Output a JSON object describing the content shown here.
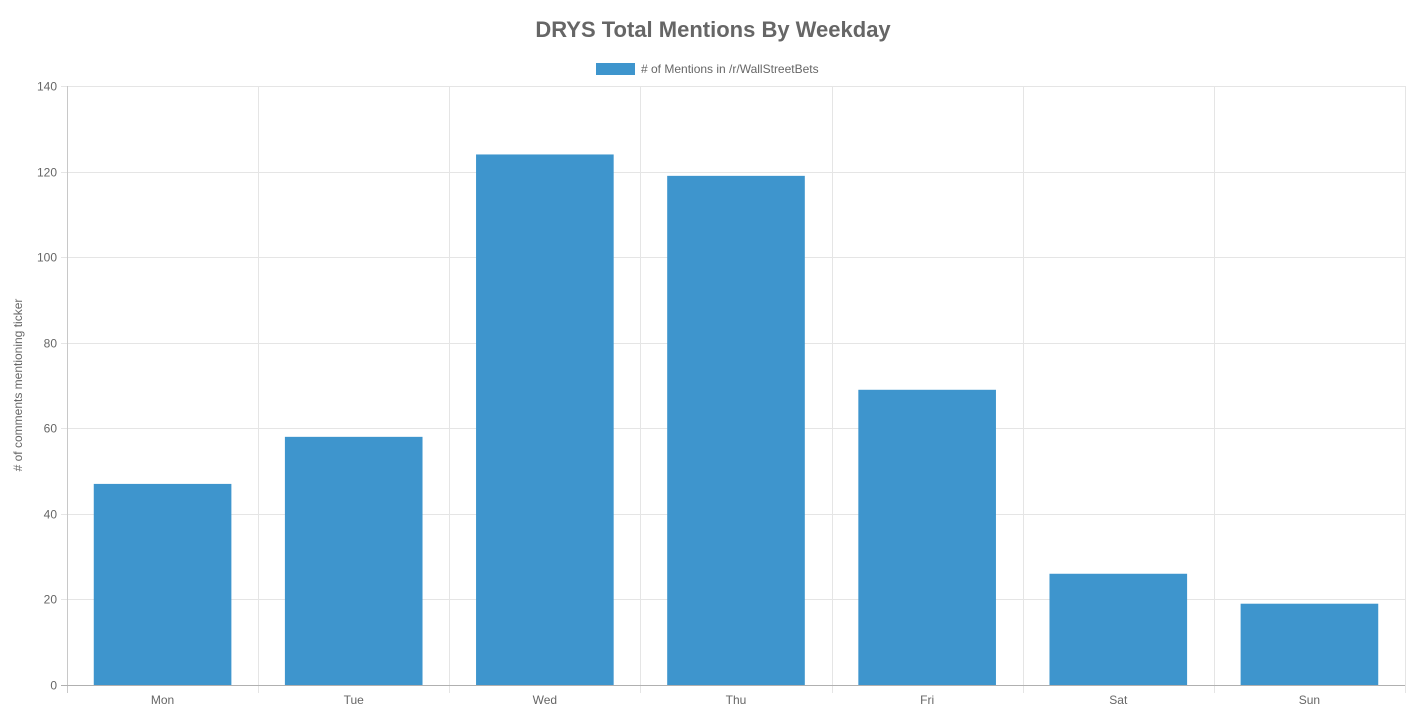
{
  "chart_data": {
    "type": "bar",
    "title": "DRYS Total Mentions By Weekday",
    "xlabel": "",
    "ylabel": "# of comments mentioning ticker",
    "categories": [
      "Mon",
      "Tue",
      "Wed",
      "Thu",
      "Fri",
      "Sat",
      "Sun"
    ],
    "series": [
      {
        "name": "# of Mentions in /r/WallStreetBets",
        "values": [
          47,
          58,
          124,
          119,
          69,
          26,
          19
        ],
        "color": "#3e95cd"
      }
    ],
    "ylim": [
      0,
      140
    ],
    "yticks": [
      "0",
      "20",
      "40",
      "60",
      "80",
      "100",
      "120",
      "140"
    ],
    "grid": true,
    "legend_position": "top-center"
  }
}
